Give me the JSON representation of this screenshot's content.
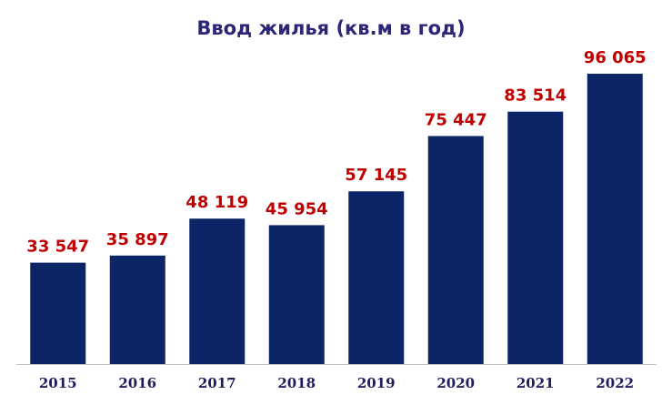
{
  "chart_data": {
    "type": "bar",
    "title": "Ввод жилья (кв.м в год)",
    "categories": [
      "2015",
      "2016",
      "2017",
      "2018",
      "2019",
      "2020",
      "2021",
      "2022"
    ],
    "values": [
      33547,
      35897,
      48119,
      45954,
      57145,
      75447,
      83514,
      96065
    ],
    "value_labels": [
      "33 547",
      "35 897",
      "48 119",
      "45 954",
      "57 145",
      "75 447",
      "83 514",
      "96 065"
    ],
    "color": "#0b2566"
  }
}
